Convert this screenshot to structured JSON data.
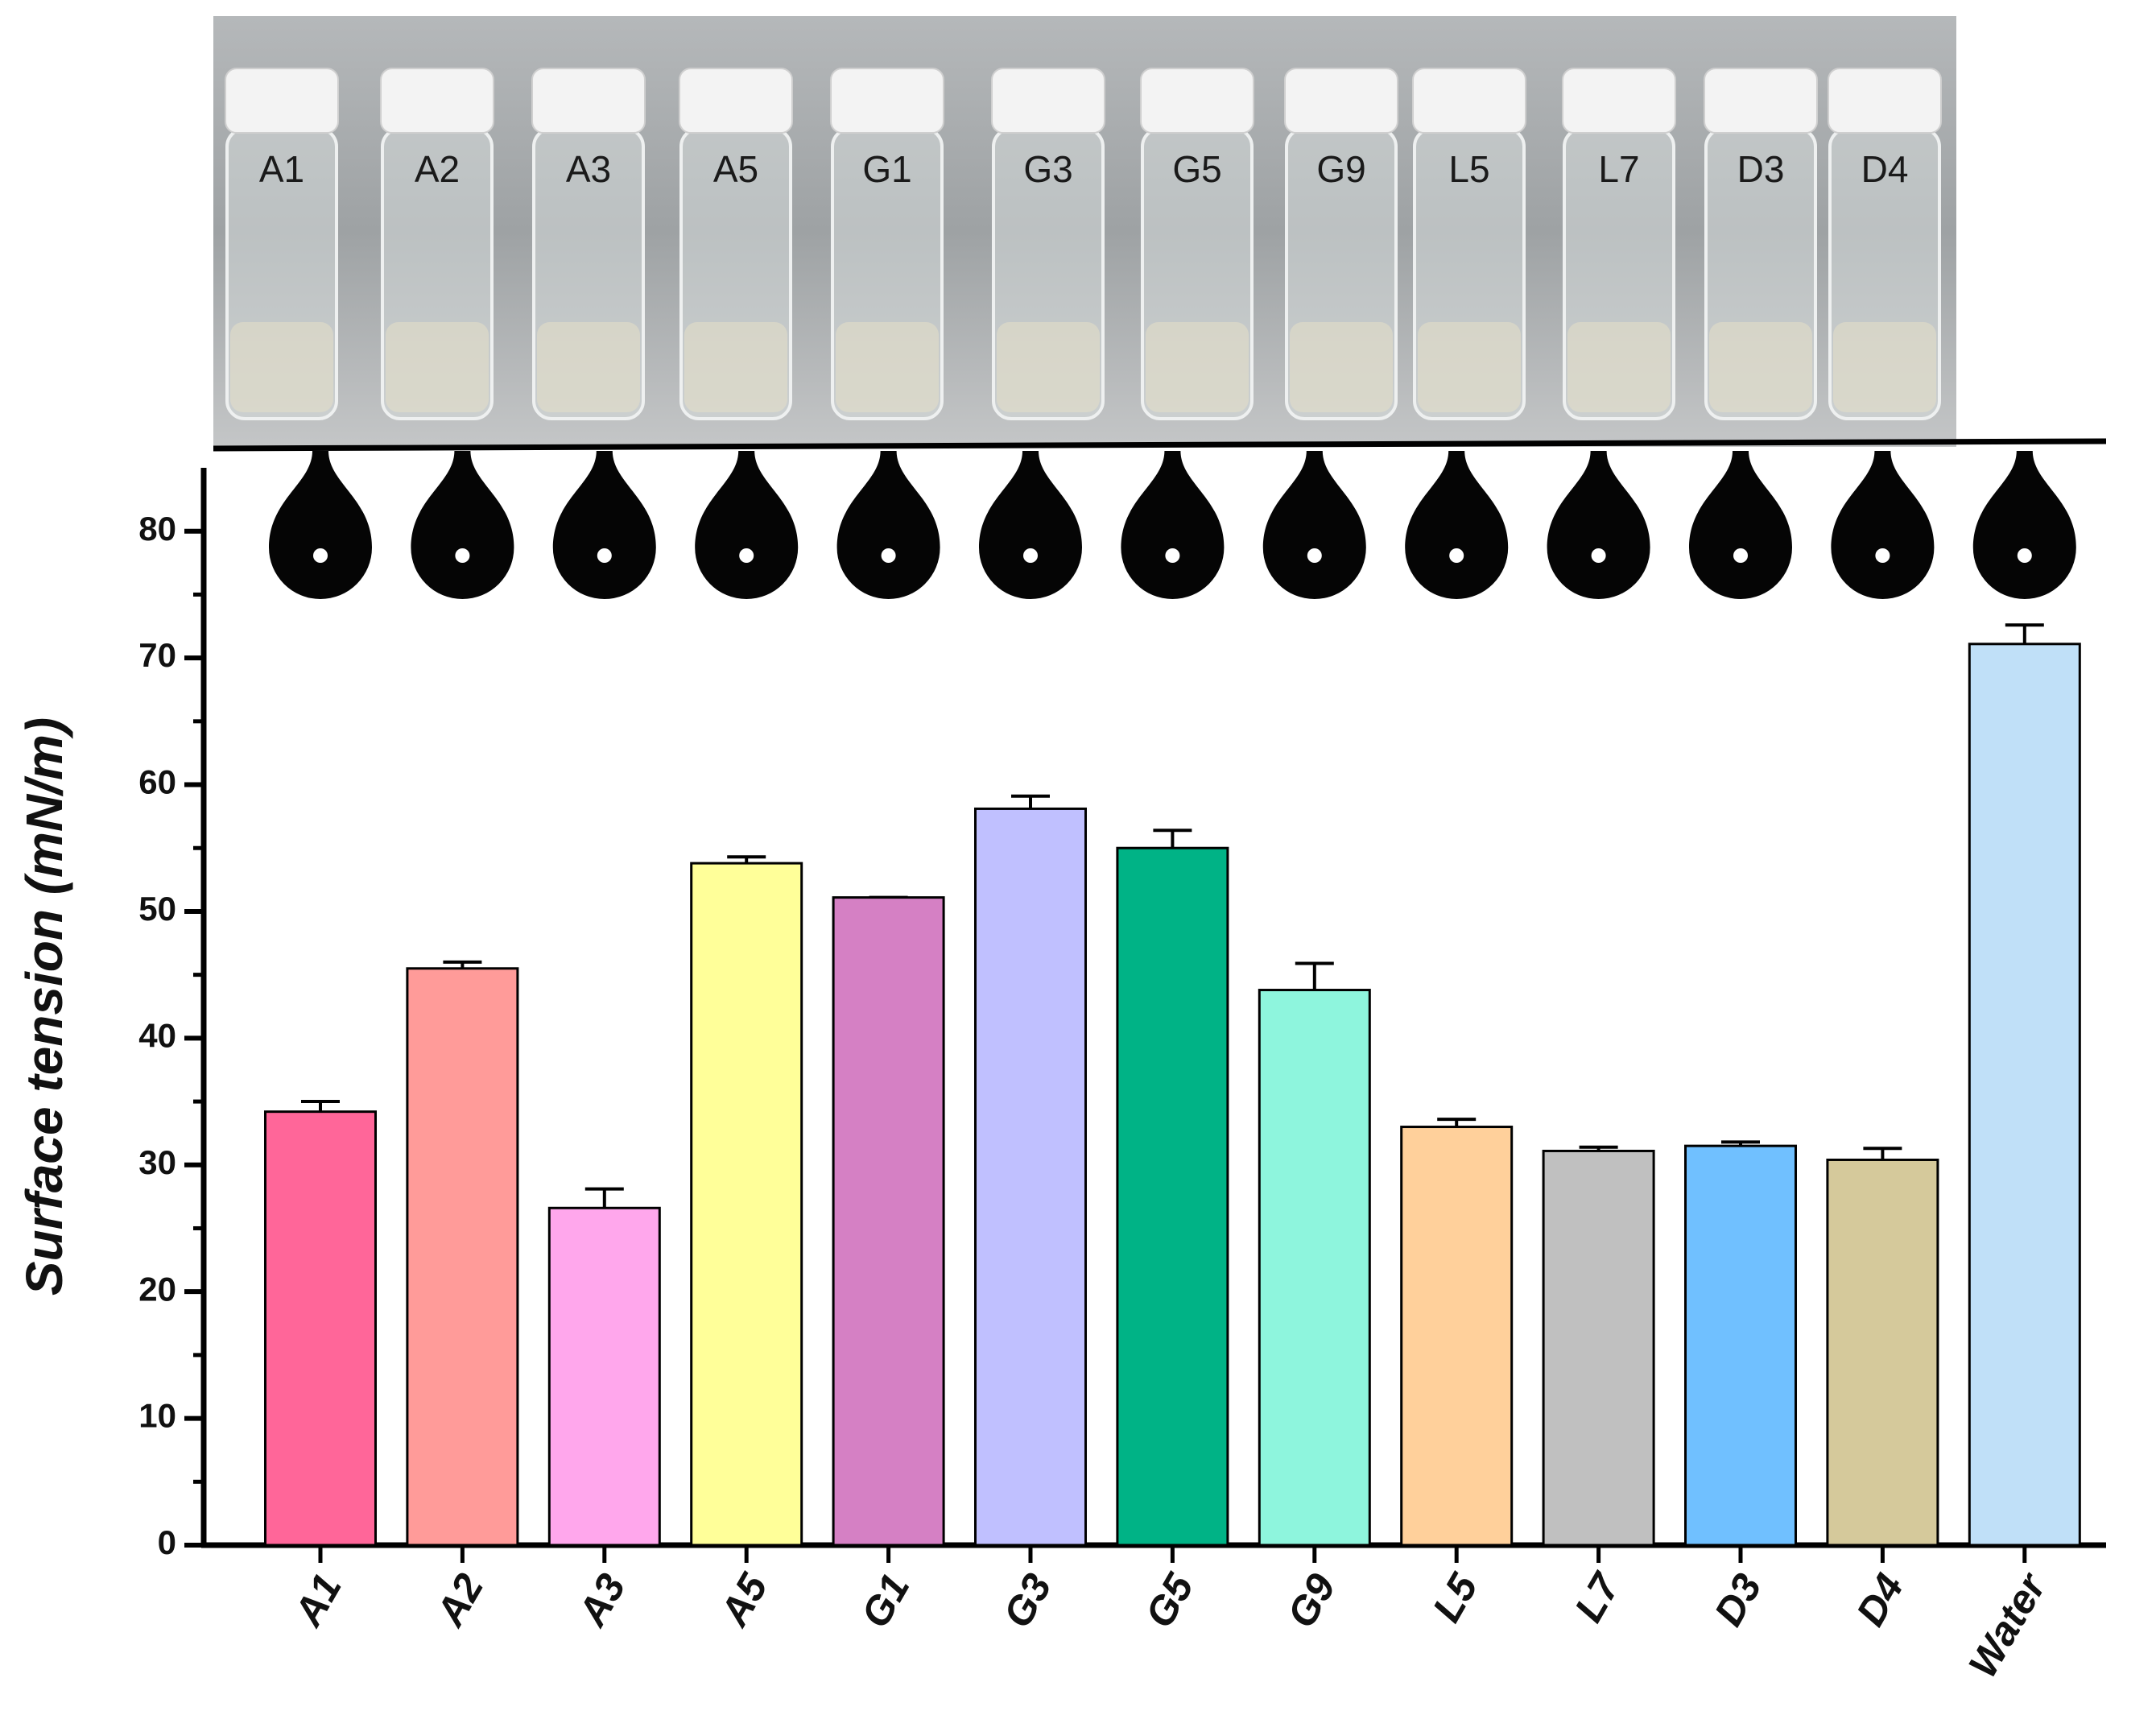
{
  "photo": {
    "labels": [
      "A1",
      "A2",
      "A3",
      "A5",
      "G1",
      "G3",
      "G5",
      "G9",
      "L5",
      "L7",
      "D3",
      "D4"
    ]
  },
  "chart_data": {
    "type": "bar",
    "y_label": "Surface tension (mN/m)",
    "categories": [
      "A1",
      "A2",
      "A3",
      "A5",
      "G1",
      "G3",
      "G5",
      "G9",
      "L5",
      "L7",
      "D3",
      "D4",
      "Water"
    ],
    "values": [
      34.2,
      45.5,
      26.6,
      53.8,
      51.1,
      58.1,
      55.0,
      43.8,
      33.0,
      31.1,
      31.5,
      30.4,
      71.1
    ],
    "errors": [
      0.8,
      0.5,
      1.5,
      0.5,
      0,
      1.0,
      1.4,
      2.1,
      0.6,
      0.3,
      0.3,
      0.9,
      1.5
    ],
    "colors": [
      "#ff6699",
      "#ff9b99",
      "#ffa7ec",
      "#ffff99",
      "#d580c4",
      "#c0c0ff",
      "#00b386",
      "#8ef5dd",
      "#ffd09b",
      "#c0c0c0",
      "#70c0ff",
      "#d5c99b",
      "#c0e0f8"
    ],
    "ylim": [
      0,
      85
    ],
    "yticks": [
      0,
      10,
      20,
      30,
      40,
      50,
      60,
      70,
      80
    ],
    "minor_yticks": [
      5,
      15,
      25,
      35,
      45,
      55,
      65,
      75
    ]
  }
}
